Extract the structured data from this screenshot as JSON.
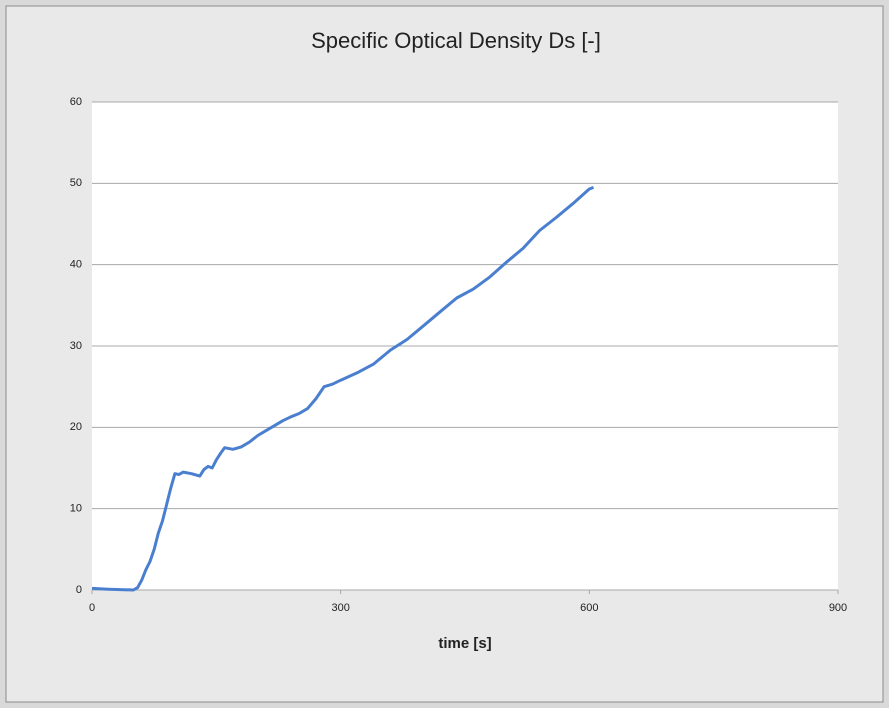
{
  "chart_data": {
    "type": "line",
    "title": "Specific Optical Density Ds [-]",
    "x_label": "time [s]",
    "x": [
      0,
      20,
      50,
      55,
      60,
      65,
      70,
      75,
      80,
      85,
      90,
      95,
      100,
      105,
      110,
      120,
      130,
      135,
      140,
      145,
      150,
      155,
      160,
      170,
      180,
      190,
      200,
      210,
      220,
      230,
      240,
      250,
      260,
      270,
      280,
      290,
      300,
      320,
      340,
      360,
      380,
      400,
      420,
      440,
      460,
      480,
      500,
      520,
      540,
      560,
      580,
      600,
      605
    ],
    "series": [
      {
        "color": "#4a7fd0",
        "values": [
          0.2,
          0.1,
          0,
          0.3,
          1.2,
          2.5,
          3.5,
          5,
          7,
          8.5,
          10.5,
          12.5,
          14.3,
          14.2,
          14.5,
          14.3,
          14,
          14.8,
          15.2,
          15,
          16,
          16.8,
          17.5,
          17.3,
          17.6,
          18.2,
          19,
          19.6,
          20.2,
          20.8,
          21.3,
          21.7,
          22.3,
          23.5,
          25,
          25.3,
          25.8,
          26.7,
          27.8,
          29.5,
          30.8,
          32.5,
          34.2,
          35.9,
          37,
          38.5,
          40.3,
          42,
          44.2,
          45.8,
          47.5,
          49.3,
          49.5
        ]
      }
    ],
    "xlim": [
      0,
      900
    ],
    "xticks": [
      0,
      300,
      600,
      900
    ],
    "ylim": [
      0,
      60
    ],
    "yticks": [
      0,
      10,
      20,
      30,
      40,
      50,
      60
    ],
    "grid": true
  }
}
